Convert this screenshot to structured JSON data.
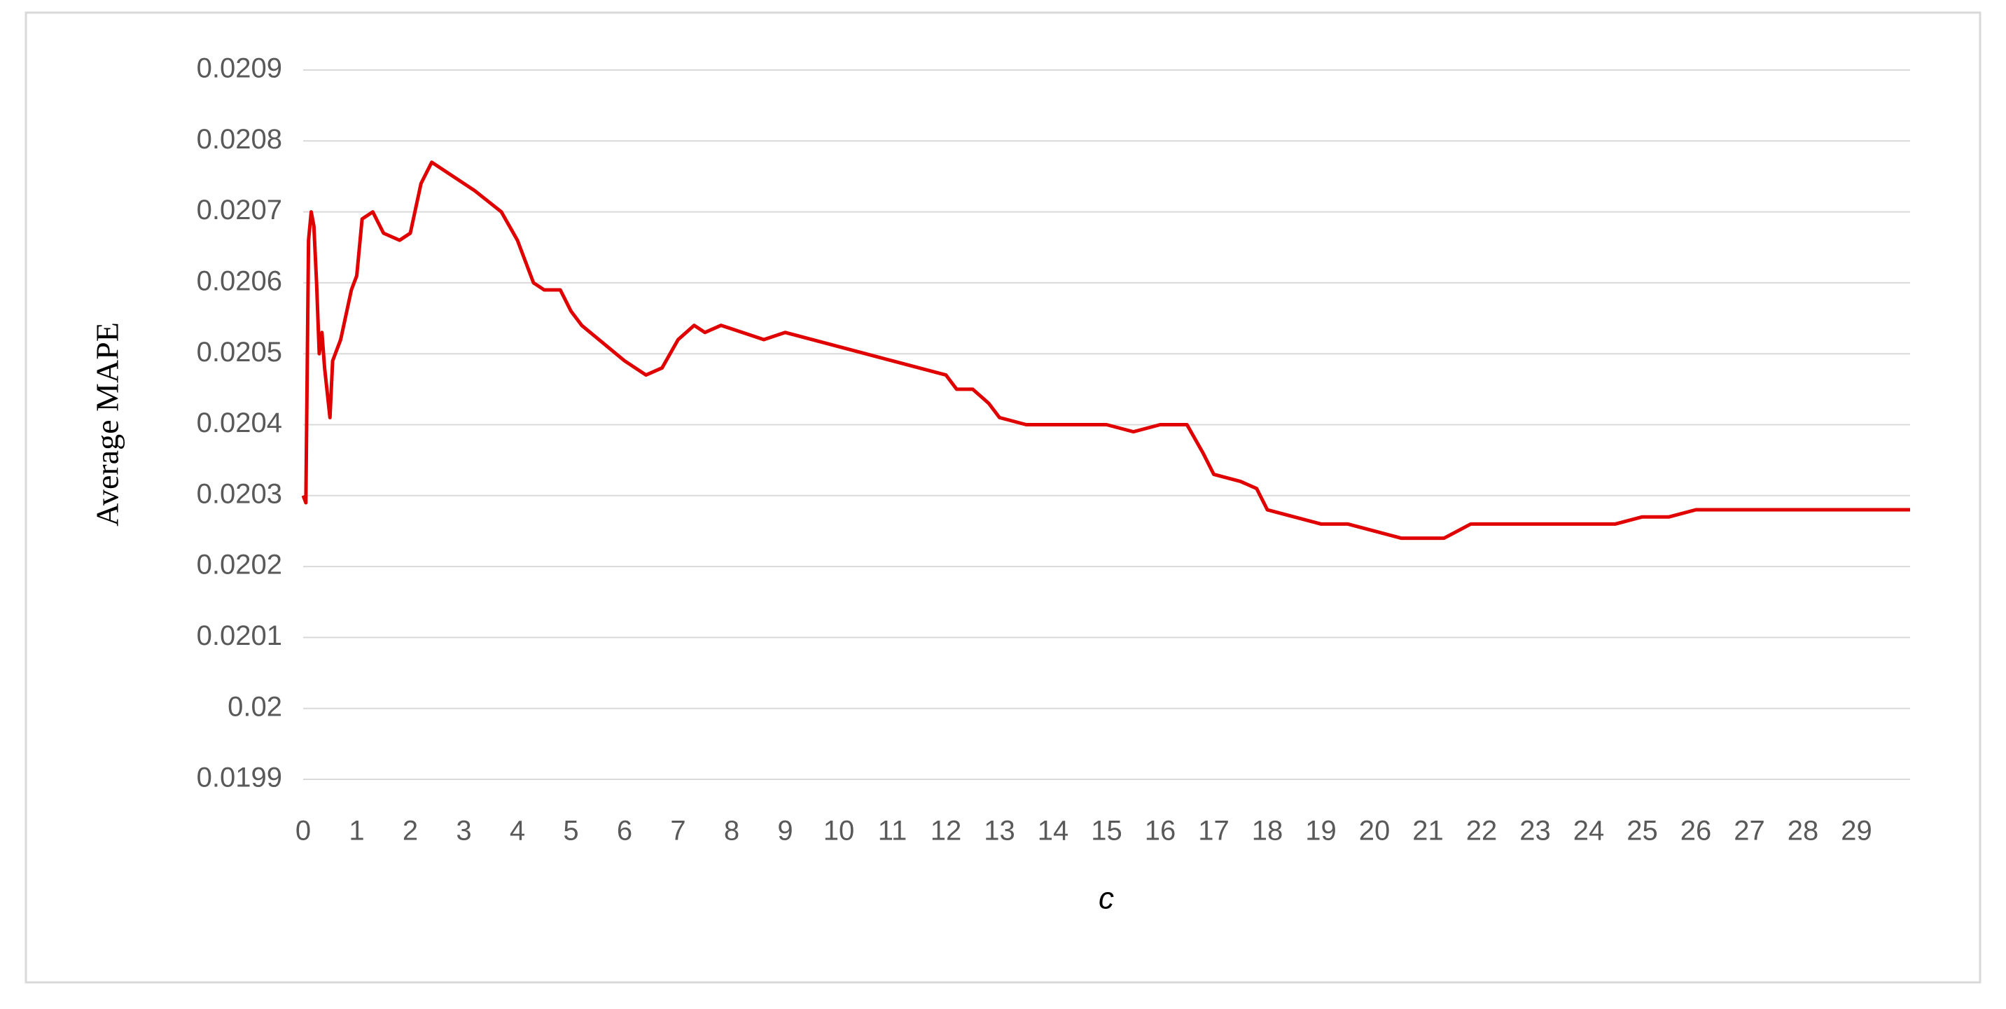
{
  "chart_data": {
    "type": "line",
    "x_label": "c",
    "y_label": "Average MAPE",
    "x": [
      0,
      0.05,
      0.1,
      0.15,
      0.2,
      0.25,
      0.3,
      0.35,
      0.4,
      0.5,
      0.55,
      0.7,
      0.9,
      1.0,
      1.1,
      1.3,
      1.5,
      1.8,
      2.0,
      2.2,
      2.4,
      2.6,
      2.8,
      3.2,
      3.7,
      4.0,
      4.3,
      4.5,
      4.8,
      5.0,
      5.2,
      6.0,
      6.4,
      6.7,
      7.0,
      7.3,
      7.5,
      7.8,
      8.2,
      8.6,
      9.0,
      9.5,
      10.0,
      10.5,
      11.0,
      11.5,
      12.0,
      12.2,
      12.5,
      12.8,
      13.0,
      13.5,
      14.0,
      14.5,
      15.0,
      15.5,
      16.0,
      16.5,
      16.8,
      17.0,
      17.5,
      17.8,
      18.0,
      18.5,
      19.0,
      19.5,
      20.0,
      20.5,
      21.0,
      21.3,
      21.8,
      22.5,
      23.0,
      23.5,
      24.0,
      24.5,
      25.0,
      25.5,
      26.0,
      27.0,
      28.0,
      29.0,
      30.0
    ],
    "series": [
      {
        "name": "Average MAPE",
        "color": "#e00000",
        "values": [
          0.0203,
          0.02029,
          0.02066,
          0.0207,
          0.02068,
          0.0206,
          0.0205,
          0.02053,
          0.02048,
          0.02041,
          0.02049,
          0.02052,
          0.02059,
          0.02061,
          0.02069,
          0.0207,
          0.02067,
          0.02066,
          0.02067,
          0.02074,
          0.02077,
          0.02076,
          0.02075,
          0.02073,
          0.0207,
          0.02066,
          0.0206,
          0.02059,
          0.02059,
          0.02056,
          0.02054,
          0.02049,
          0.02047,
          0.02048,
          0.02052,
          0.02054,
          0.02053,
          0.02054,
          0.02053,
          0.02052,
          0.02053,
          0.02052,
          0.02051,
          0.0205,
          0.02049,
          0.02048,
          0.02047,
          0.02045,
          0.02045,
          0.02043,
          0.02041,
          0.0204,
          0.0204,
          0.0204,
          0.0204,
          0.02039,
          0.0204,
          0.0204,
          0.02036,
          0.02033,
          0.02032,
          0.02031,
          0.02028,
          0.02027,
          0.02026,
          0.02026,
          0.02025,
          0.02024,
          0.02024,
          0.02024,
          0.02026,
          0.02026,
          0.02026,
          0.02026,
          0.02026,
          0.02026,
          0.02027,
          0.02027,
          0.02028,
          0.02028,
          0.02028,
          0.02028,
          0.02028
        ]
      }
    ],
    "xlim": [
      0,
      30
    ],
    "xticks": [
      0,
      1,
      2,
      3,
      4,
      5,
      6,
      7,
      8,
      9,
      10,
      11,
      12,
      13,
      14,
      15,
      16,
      17,
      18,
      19,
      20,
      21,
      22,
      23,
      24,
      25,
      26,
      27,
      28,
      29
    ],
    "ylim": [
      0.0199,
      0.0209
    ],
    "yticks": [
      0.0199,
      0.02,
      0.0201,
      0.0202,
      0.0203,
      0.0204,
      0.0205,
      0.0206,
      0.0207,
      0.0208,
      0.0209
    ],
    "grid": true
  }
}
